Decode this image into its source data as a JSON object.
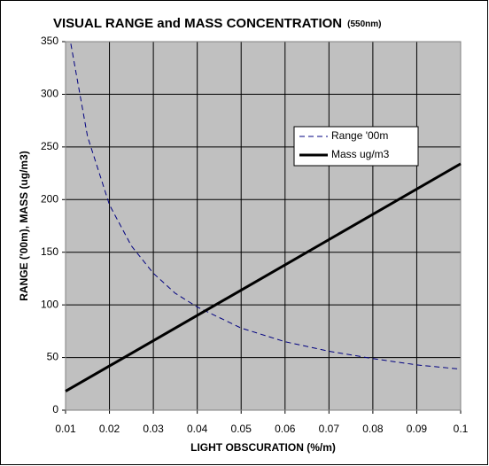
{
  "chart_data": {
    "type": "line",
    "title": "VISUAL RANGE and MASS CONCENTRATION",
    "subtitle": "(550nm)",
    "x_label": "LIGHT OBSCURATION (%/m)",
    "y_label": "RANGE ('00m), MASS (ug/m3)",
    "xlim": [
      0.01,
      0.1
    ],
    "xticks": [
      0.01,
      0.02,
      0.03,
      0.04,
      0.05,
      0.06,
      0.07,
      0.08,
      0.09,
      0.1
    ],
    "ylim": [
      0,
      350
    ],
    "yticks": [
      0,
      50,
      100,
      150,
      200,
      250,
      300,
      350
    ],
    "grid": true,
    "legend": "upper right",
    "series": [
      {
        "name": "Range '00m",
        "color": "#000080",
        "style": "dashed",
        "x": [
          0.0112,
          0.015,
          0.02,
          0.025,
          0.03,
          0.035,
          0.04,
          0.05,
          0.06,
          0.07,
          0.08,
          0.09,
          0.1
        ],
        "values": [
          348,
          260,
          195,
          156,
          130,
          111,
          98,
          78,
          65,
          56,
          49,
          43,
          39
        ]
      },
      {
        "name": "Mass ug/m3",
        "color": "#000000",
        "style": "solid",
        "x": [
          0.01,
          0.1
        ],
        "values": [
          18,
          234
        ]
      }
    ]
  }
}
